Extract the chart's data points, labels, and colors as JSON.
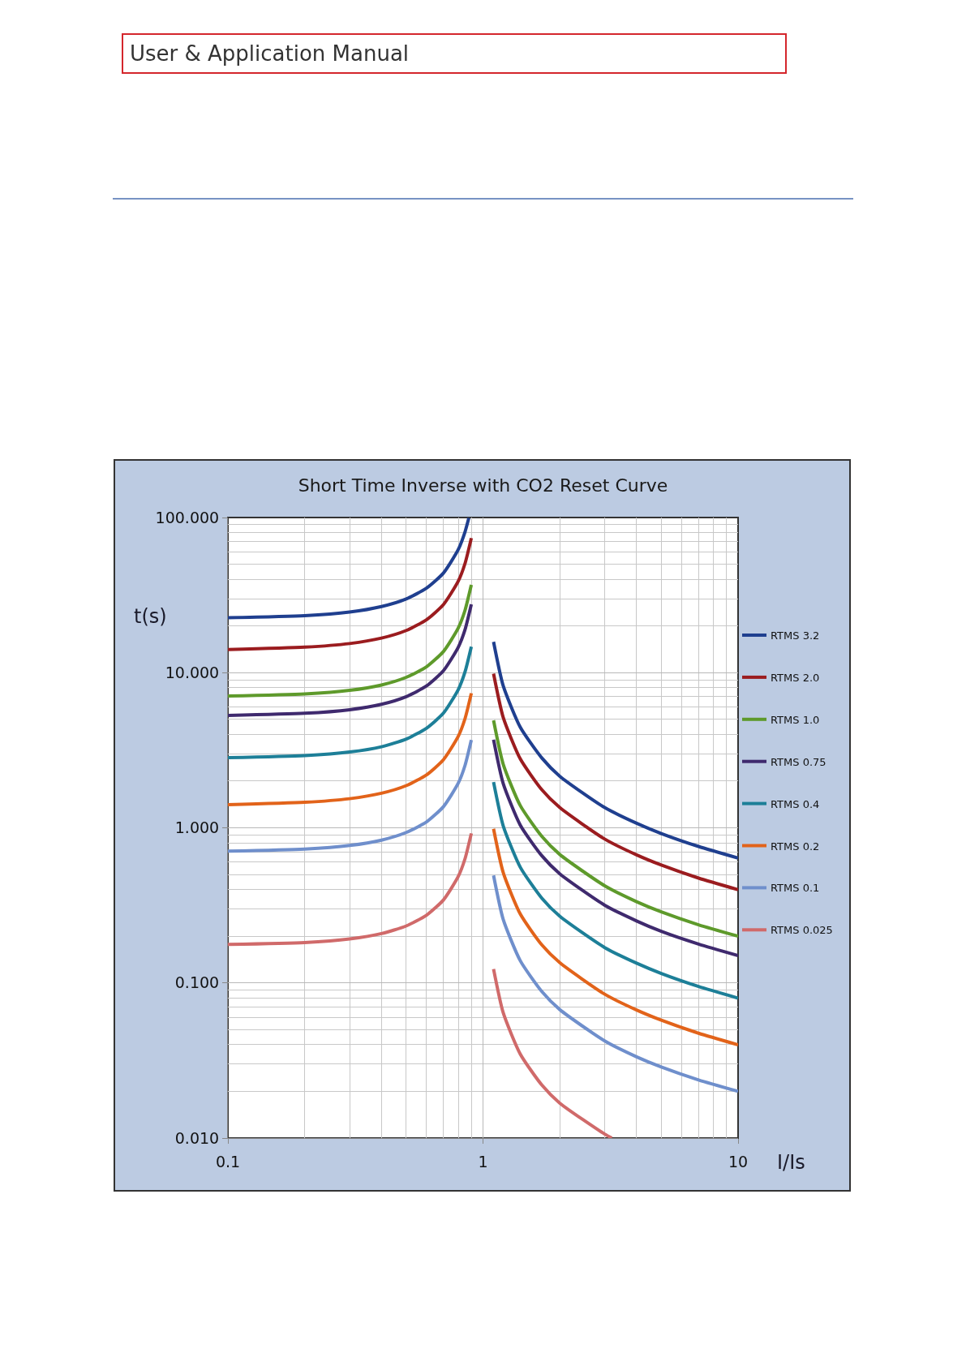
{
  "chart_data": {
    "type": "line",
    "title": "Short Time Inverse with CO2 Reset Curve",
    "xlabel": "I/Is",
    "ylabel": "t(s)",
    "annotations": [
      "User & Application Manual"
    ],
    "log": "xy",
    "grid": true,
    "legend": "right",
    "line_style": "solid",
    "marker": "none",
    "xlim": [
      0.1,
      10
    ],
    "xticks": [
      0.1,
      1,
      10
    ],
    "ylim": [
      0.01,
      100
    ],
    "yticks": [
      {
        "value": 0.01,
        "label": "0.010"
      },
      {
        "value": 0.1,
        "label": "0.100"
      },
      {
        "value": 1,
        "label": "1.000"
      },
      {
        "value": 10,
        "label": "10.000"
      },
      {
        "value": 100,
        "label": "100.000"
      }
    ],
    "series": [
      {
        "name": "RTMS 3.2",
        "color": "#1f3f8f",
        "x": [
          0.1,
          0.2,
          0.3,
          0.4,
          0.5,
          0.6,
          0.7,
          0.8,
          0.85,
          0.88,
          1,
          1.1,
          1.2,
          1.4,
          1.7,
          2,
          3,
          4,
          5,
          7,
          10
        ],
        "values": [
          22.6,
          23.3,
          24.6,
          26.7,
          29.9,
          35.0,
          43.9,
          62.2,
          80.7,
          99.3,
          null,
          15.8,
          8.23,
          4.45,
          2.82,
          2.15,
          1.35,
          1.07,
          0.919,
          0.758,
          0.638
        ]
      },
      {
        "name": "RTMS 2.0",
        "color": "#9b1c1f",
        "x": [
          0.1,
          0.2,
          0.3,
          0.4,
          0.5,
          0.6,
          0.7,
          0.8,
          0.85,
          0.9,
          1,
          1.1,
          1.2,
          1.4,
          1.7,
          2,
          3,
          4,
          5,
          7,
          10
        ],
        "values": [
          14.1,
          14.6,
          15.4,
          16.7,
          18.7,
          21.9,
          27.5,
          38.9,
          50.5,
          73.7,
          null,
          9.85,
          5.15,
          2.78,
          1.76,
          1.35,
          0.846,
          0.669,
          0.575,
          0.474,
          0.399
        ]
      },
      {
        "name": "RTMS 1.0",
        "color": "#5e9a2b",
        "x": [
          0.1,
          0.2,
          0.3,
          0.4,
          0.5,
          0.6,
          0.7,
          0.8,
          0.85,
          0.9,
          1,
          1.1,
          1.2,
          1.4,
          1.7,
          2,
          3,
          4,
          5,
          7,
          10
        ],
        "values": [
          7.07,
          7.29,
          7.69,
          8.33,
          9.33,
          10.9,
          13.7,
          19.4,
          25.2,
          36.8,
          null,
          4.93,
          2.57,
          1.39,
          0.881,
          0.673,
          0.423,
          0.334,
          0.287,
          0.237,
          0.2
        ]
      },
      {
        "name": "RTMS 0.75",
        "color": "#3f2a6e",
        "x": [
          0.1,
          0.2,
          0.3,
          0.4,
          0.5,
          0.6,
          0.7,
          0.8,
          0.85,
          0.9,
          1,
          1.1,
          1.2,
          1.4,
          1.7,
          2,
          3,
          4,
          5,
          7,
          10
        ],
        "values": [
          5.3,
          5.47,
          5.77,
          6.25,
          7.0,
          8.2,
          10.3,
          14.6,
          18.9,
          27.6,
          null,
          3.7,
          1.93,
          1.04,
          0.661,
          0.505,
          0.317,
          0.251,
          0.215,
          0.178,
          0.15
        ]
      },
      {
        "name": "RTMS 0.4",
        "color": "#1d7f98",
        "x": [
          0.1,
          0.2,
          0.3,
          0.4,
          0.5,
          0.6,
          0.7,
          0.8,
          0.85,
          0.9,
          1,
          1.1,
          1.2,
          1.4,
          1.7,
          2,
          3,
          4,
          5,
          7,
          10
        ],
        "values": [
          2.83,
          2.92,
          3.08,
          3.33,
          3.73,
          4.38,
          5.49,
          7.78,
          10.1,
          14.7,
          null,
          1.97,
          1.03,
          0.557,
          0.352,
          0.269,
          0.169,
          0.134,
          0.115,
          0.0948,
          0.0798
        ]
      },
      {
        "name": "RTMS 0.2",
        "color": "#e2631a",
        "x": [
          0.1,
          0.2,
          0.3,
          0.4,
          0.5,
          0.6,
          0.7,
          0.8,
          0.85,
          0.9,
          1,
          1.1,
          1.2,
          1.4,
          1.7,
          2,
          3,
          4,
          5,
          7,
          10
        ],
        "values": [
          1.41,
          1.46,
          1.54,
          1.67,
          1.87,
          2.19,
          2.75,
          3.89,
          5.05,
          7.37,
          null,
          0.985,
          0.515,
          0.278,
          0.176,
          0.135,
          0.0846,
          0.0669,
          0.0575,
          0.0474,
          0.0399
        ]
      },
      {
        "name": "RTMS 0.1",
        "color": "#6f8fcc",
        "x": [
          0.1,
          0.2,
          0.3,
          0.4,
          0.5,
          0.6,
          0.7,
          0.8,
          0.85,
          0.9,
          1,
          1.1,
          1.2,
          1.4,
          1.7,
          2,
          3,
          4,
          5,
          7,
          10
        ],
        "values": [
          0.707,
          0.729,
          0.769,
          0.833,
          0.933,
          1.09,
          1.37,
          1.94,
          2.52,
          3.68,
          null,
          0.493,
          0.257,
          0.139,
          0.0881,
          0.0673,
          0.0423,
          0.0334,
          0.0287,
          0.0237,
          0.02
        ]
      },
      {
        "name": "RTMS 0.025",
        "color": "#d06a6a",
        "x": [
          0.1,
          0.2,
          0.3,
          0.4,
          0.5,
          0.6,
          0.7,
          0.8,
          0.85,
          0.9,
          1,
          1.1,
          1.2,
          1.4,
          1.7,
          2,
          3,
          3.2
        ],
        "values": [
          0.177,
          0.182,
          0.192,
          0.208,
          0.233,
          0.273,
          0.343,
          0.486,
          0.631,
          0.921,
          null,
          0.123,
          0.0643,
          0.0348,
          0.022,
          0.0168,
          0.0106,
          0.01
        ]
      }
    ]
  }
}
